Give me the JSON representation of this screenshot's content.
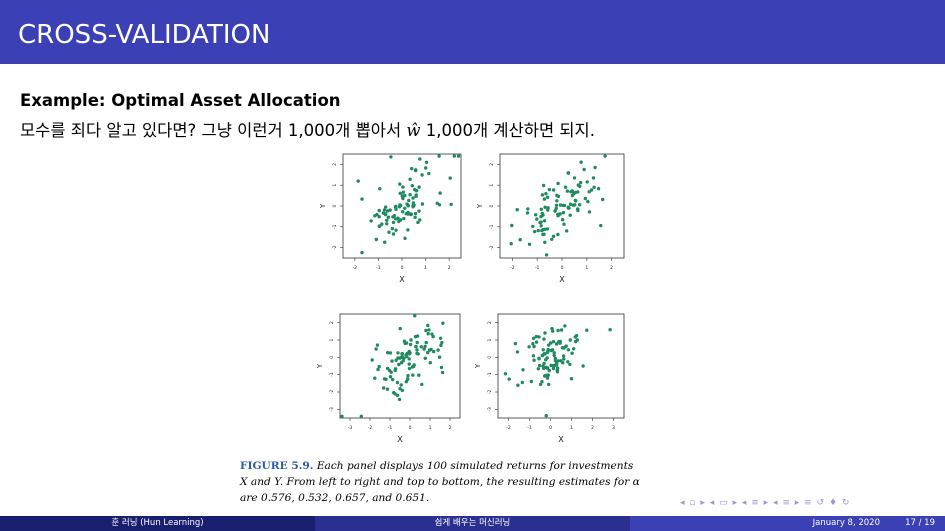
{
  "header": {
    "title": "CROSS-VALIDATION"
  },
  "example": {
    "title": "Example: Optimal Asset Allocation",
    "line_pre": "모수를 죄다 알고 있다면? 그냥 이런거 1,000개 뽑아서 ",
    "what": "ŵ",
    "line_post": " 1,000개 계산하면 되지."
  },
  "caption": {
    "label": "FIGURE 5.9.",
    "text1": " Each panel displays 100 simulated returns for investments",
    "text2": "X and Y. From left to right and top to bottom, the resulting estimates for α",
    "text3": "are 0.576, 0.532, 0.657, and 0.651."
  },
  "nav": {
    "symbols": "◂ ▫ ▸ ◂ ▭ ▸ ◂ ≡ ▸ ◂ ≡ ▸   ≡   ↺ ♦ ↻"
  },
  "footer": {
    "left": "훈 러닝 (Hun Learning)",
    "center": "쉽게 배우는 머신러닝",
    "date": "January 8, 2020",
    "page": "17 / 19"
  },
  "colors": {
    "header_bg": "#3b40b4",
    "point": "#1e8a5e",
    "caption_label": "#2a5ca8"
  },
  "chart_data": [
    {
      "type": "scatter",
      "xlabel": "X",
      "ylabel": "Y",
      "xticks": [
        "-2",
        "-1",
        "0",
        "1",
        "2"
      ],
      "yticks": [
        "-2",
        "-1",
        "0",
        "1",
        "2"
      ],
      "xlim": [
        -2.5,
        2.5
      ],
      "ylim": [
        -2.5,
        2.5
      ]
    },
    {
      "type": "scatter",
      "xlabel": "X",
      "ylabel": "Y",
      "xticks": [
        "-2",
        "-1",
        "0",
        "1",
        "2"
      ],
      "yticks": [
        "-2",
        "-1",
        "0",
        "1",
        "2"
      ],
      "xlim": [
        -2.5,
        2.5
      ],
      "ylim": [
        -2.5,
        2.5
      ]
    },
    {
      "type": "scatter",
      "xlabel": "X",
      "ylabel": "Y",
      "xticks": [
        "-3",
        "-2",
        "-1",
        "0",
        "1",
        "2"
      ],
      "yticks": [
        "-3",
        "-2",
        "-1",
        "0",
        "1",
        "2"
      ],
      "xlim": [
        -3.5,
        2.5
      ],
      "ylim": [
        -3.5,
        2.5
      ]
    },
    {
      "type": "scatter",
      "xlabel": "X",
      "ylabel": "Y",
      "xticks": [
        "-2",
        "-1",
        "0",
        "1",
        "2",
        "3"
      ],
      "yticks": [
        "-3",
        "-2",
        "-1",
        "0",
        "1",
        "2"
      ],
      "xlim": [
        -2.5,
        3.5
      ],
      "ylim": [
        -3.5,
        2.5
      ]
    }
  ]
}
